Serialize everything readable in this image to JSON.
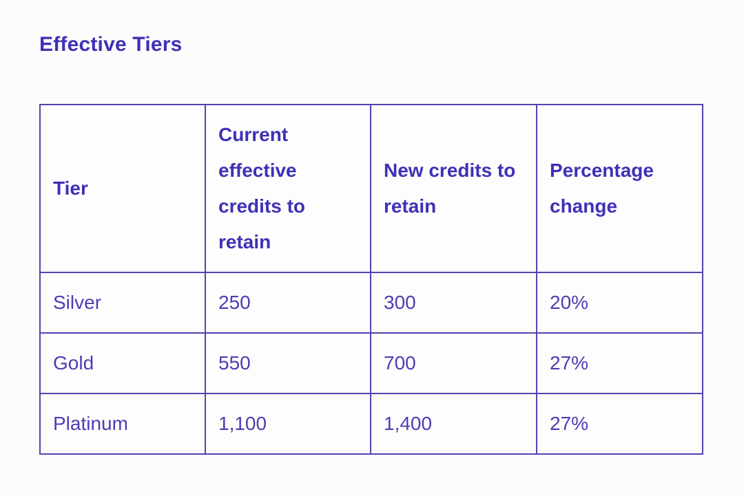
{
  "page": {
    "title": "Effective Tiers"
  },
  "colors": {
    "accent_text": "#3e31b5",
    "data_text": "#4b3db3",
    "table_border": "#5144b0",
    "page_background": "#fcfcfc",
    "cell_background": "#fdfdfd"
  },
  "table": {
    "columns": [
      "Tier",
      "Current effective credits to retain",
      "New credits to retain",
      "Percentage change"
    ],
    "rows": [
      {
        "tier": "Silver",
        "current": "250",
        "new": "300",
        "change": "20%"
      },
      {
        "tier": "Gold",
        "current": "550",
        "new": "700",
        "change": "27%"
      },
      {
        "tier": "Platinum",
        "current": "1,100",
        "new": "1,400",
        "change": "27%"
      }
    ]
  }
}
